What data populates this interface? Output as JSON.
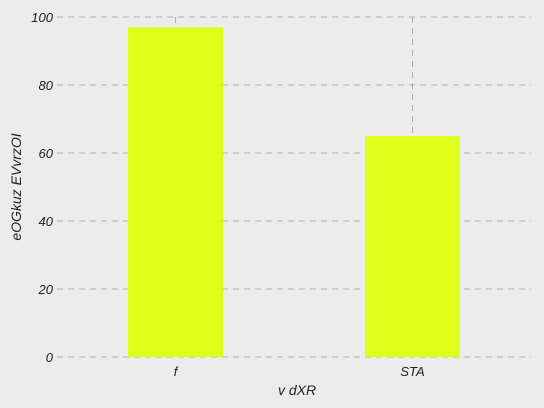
{
  "chart_data": {
    "type": "bar",
    "categories": [
      "f",
      "STA"
    ],
    "values": [
      97,
      65
    ],
    "xlabel": "v dXR",
    "ylabel": "eOGkuz EVvrzOI",
    "ylim": [
      0,
      100
    ],
    "yticks": [
      0,
      20,
      40,
      60,
      80,
      100
    ],
    "grid": true,
    "grid_style": "dashed",
    "bar_color": "#dfff1a",
    "plot_background": "#ececec",
    "figure_background": "#ececec",
    "grid_color": "#b0b0b0"
  }
}
